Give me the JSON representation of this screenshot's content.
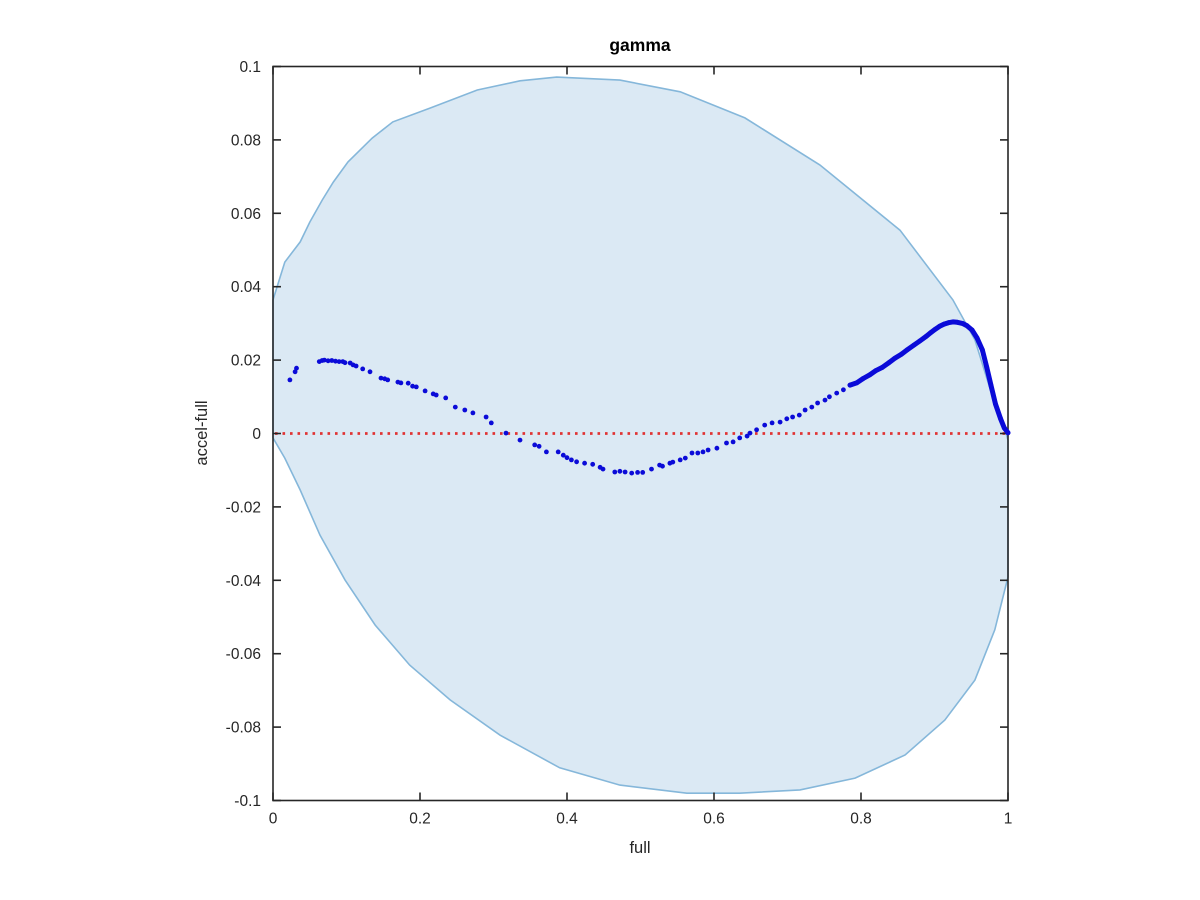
{
  "chart_data": {
    "type": "scatter",
    "title": "gamma",
    "xlabel": "full",
    "ylabel": "accel-full",
    "xlim": [
      0,
      1
    ],
    "ylim": [
      -0.1,
      0.1
    ],
    "grid": false,
    "legend": "none",
    "x_tick_values": [
      0,
      0.2,
      0.4,
      0.6,
      0.8,
      1
    ],
    "x_tick_labels": [
      "0",
      "0.2",
      "0.4",
      "0.6",
      "0.8",
      "1"
    ],
    "y_tick_values": [
      0.1,
      0.08,
      0.06,
      0.04,
      0.02,
      0,
      -0.02,
      -0.04,
      -0.06,
      -0.08,
      -0.1
    ],
    "y_tick_labels": [
      "0.1",
      "0.08",
      "0.06",
      "0.04",
      "0.02",
      "0",
      "-0.02",
      "-0.04",
      "-0.06",
      "-0.08",
      "-0.1"
    ],
    "series": [
      {
        "name": "shaded-confidence-region",
        "type": "filled-polygon",
        "fill_color": "#dbe9f4",
        "stroke_color": "#85b7da",
        "boundary": [
          [
            0.386,
            0.0971
          ],
          [
            0.472,
            0.0963
          ],
          [
            0.554,
            0.0931
          ],
          [
            0.642,
            0.086
          ],
          [
            0.744,
            0.0732
          ],
          [
            0.853,
            0.0554
          ],
          [
            0.925,
            0.0364
          ],
          [
            0.955,
            0.0255
          ],
          [
            0.976,
            0.0119
          ],
          [
            0.992,
            0.0037
          ],
          [
            1.0,
            -0.0018
          ],
          [
            1.0,
            -0.0391
          ],
          [
            0.982,
            -0.0535
          ],
          [
            0.955,
            -0.0672
          ],
          [
            0.914,
            -0.0781
          ],
          [
            0.86,
            -0.0876
          ],
          [
            0.792,
            -0.0939
          ],
          [
            0.717,
            -0.0971
          ],
          [
            0.635,
            -0.098
          ],
          [
            0.563,
            -0.098
          ],
          [
            0.472,
            -0.0958
          ],
          [
            0.39,
            -0.0911
          ],
          [
            0.309,
            -0.0822
          ],
          [
            0.241,
            -0.0726
          ],
          [
            0.186,
            -0.0631
          ],
          [
            0.139,
            -0.0522
          ],
          [
            0.098,
            -0.0399
          ],
          [
            0.064,
            -0.0277
          ],
          [
            0.037,
            -0.0154
          ],
          [
            0.016,
            -0.0067
          ],
          [
            0.0,
            -0.0012
          ],
          [
            0.0,
            0.0364
          ],
          [
            0.016,
            0.0467
          ],
          [
            0.037,
            0.0522
          ],
          [
            0.05,
            0.0576
          ],
          [
            0.067,
            0.0636
          ],
          [
            0.082,
            0.0685
          ],
          [
            0.102,
            0.074
          ],
          [
            0.135,
            0.0805
          ],
          [
            0.163,
            0.0849
          ],
          [
            0.214,
            0.0887
          ],
          [
            0.278,
            0.0936
          ],
          [
            0.336,
            0.0961
          ]
        ]
      },
      {
        "name": "zero-reference-line",
        "type": "line",
        "style": "dotted",
        "color": "#e03333",
        "y": 0
      },
      {
        "name": "accel-full-difference",
        "type": "scatter",
        "color": "#0b0bd8",
        "points": [
          [
            0.023,
            0.0146
          ],
          [
            0.03,
            0.0168
          ],
          [
            0.032,
            0.0178
          ],
          [
            0.063,
            0.0196
          ],
          [
            0.067,
            0.0199
          ],
          [
            0.07,
            0.02
          ],
          [
            0.075,
            0.0198
          ],
          [
            0.08,
            0.0199
          ],
          [
            0.085,
            0.0197
          ],
          [
            0.09,
            0.0196
          ],
          [
            0.095,
            0.0196
          ],
          [
            0.098,
            0.0193
          ],
          [
            0.105,
            0.0192
          ],
          [
            0.109,
            0.0187
          ],
          [
            0.113,
            0.0184
          ],
          [
            0.122,
            0.0176
          ],
          [
            0.132,
            0.0168
          ],
          [
            0.147,
            0.0151
          ],
          [
            0.152,
            0.0149
          ],
          [
            0.156,
            0.0146
          ],
          [
            0.17,
            0.014
          ],
          [
            0.174,
            0.0138
          ],
          [
            0.184,
            0.0137
          ],
          [
            0.19,
            0.0129
          ],
          [
            0.195,
            0.0127
          ],
          [
            0.207,
            0.0116
          ],
          [
            0.218,
            0.0108
          ],
          [
            0.222,
            0.0105
          ],
          [
            0.235,
            0.0097
          ],
          [
            0.248,
            0.0072
          ],
          [
            0.261,
            0.0064
          ],
          [
            0.272,
            0.0056
          ],
          [
            0.29,
            0.0045
          ],
          [
            0.297,
            0.0029
          ],
          [
            0.317,
            0.0001
          ],
          [
            0.336,
            -0.0018
          ],
          [
            0.356,
            -0.0031
          ],
          [
            0.362,
            -0.0035
          ],
          [
            0.372,
            -0.005
          ],
          [
            0.388,
            -0.005
          ],
          [
            0.395,
            -0.0059
          ],
          [
            0.4,
            -0.0066
          ],
          [
            0.406,
            -0.0072
          ],
          [
            0.413,
            -0.0077
          ],
          [
            0.424,
            -0.0081
          ],
          [
            0.435,
            -0.0084
          ],
          [
            0.445,
            -0.0092
          ],
          [
            0.449,
            -0.0097
          ],
          [
            0.465,
            -0.0105
          ],
          [
            0.472,
            -0.0103
          ],
          [
            0.479,
            -0.0105
          ],
          [
            0.488,
            -0.0108
          ],
          [
            0.496,
            -0.0106
          ],
          [
            0.503,
            -0.0106
          ],
          [
            0.515,
            -0.0097
          ],
          [
            0.526,
            -0.0086
          ],
          [
            0.53,
            -0.0089
          ],
          [
            0.54,
            -0.0081
          ],
          [
            0.544,
            -0.0078
          ],
          [
            0.554,
            -0.0072
          ],
          [
            0.561,
            -0.0067
          ],
          [
            0.57,
            -0.0053
          ],
          [
            0.578,
            -0.0053
          ],
          [
            0.585,
            -0.005
          ],
          [
            0.592,
            -0.0045
          ],
          [
            0.604,
            -0.004
          ],
          [
            0.617,
            -0.0026
          ],
          [
            0.626,
            -0.0023
          ],
          [
            0.635,
            -0.0012
          ],
          [
            0.645,
            -0.0007
          ],
          [
            0.649,
            0.0001
          ],
          [
            0.658,
            0.001
          ],
          [
            0.669,
            0.0023
          ],
          [
            0.679,
            0.0029
          ],
          [
            0.69,
            0.0031
          ],
          [
            0.699,
            0.004
          ],
          [
            0.707,
            0.0045
          ],
          [
            0.716,
            0.005
          ],
          [
            0.724,
            0.0064
          ],
          [
            0.733,
            0.0072
          ],
          [
            0.741,
            0.0083
          ],
          [
            0.751,
            0.0091
          ],
          [
            0.757,
            0.01
          ],
          [
            0.767,
            0.011
          ],
          [
            0.776,
            0.0119
          ],
          [
            0.785,
            0.0132
          ],
          [
            0.794,
            0.0138
          ],
          [
            0.803,
            0.015
          ],
          [
            0.812,
            0.016
          ],
          [
            0.82,
            0.0171
          ],
          [
            0.829,
            0.018
          ],
          [
            0.838,
            0.0193
          ],
          [
            0.846,
            0.0205
          ],
          [
            0.855,
            0.0216
          ],
          [
            0.863,
            0.0228
          ],
          [
            0.872,
            0.0241
          ],
          [
            0.88,
            0.0252
          ],
          [
            0.889,
            0.0265
          ],
          [
            0.895,
            0.0275
          ],
          [
            0.901,
            0.0284
          ],
          [
            0.907,
            0.0292
          ],
          [
            0.913,
            0.0298
          ],
          [
            0.919,
            0.0302
          ],
          [
            0.925,
            0.0304
          ],
          [
            0.931,
            0.0303
          ],
          [
            0.938,
            0.03
          ],
          [
            0.944,
            0.0294
          ],
          [
            0.951,
            0.0282
          ],
          [
            0.958,
            0.026
          ],
          [
            0.965,
            0.0228
          ],
          [
            0.971,
            0.0181
          ],
          [
            0.977,
            0.013
          ],
          [
            0.983,
            0.008
          ],
          [
            0.99,
            0.004
          ],
          [
            0.995,
            0.0015
          ],
          [
            1.0,
            0.0002
          ]
        ]
      }
    ]
  },
  "style": {
    "axis_color": "#262626",
    "background": "#ffffff",
    "scatter_color": "#0b0bd8",
    "region_fill": "#dbe9f4",
    "region_stroke": "#85b7da",
    "zero_line_color": "#e03333"
  }
}
